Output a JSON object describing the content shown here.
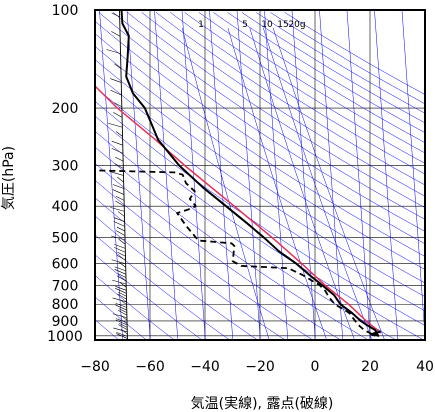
{
  "chart_data": {
    "type": "skew-t",
    "xlabel": "気温(実線), 露点(破線)",
    "ylabel": "気圧(hPa)",
    "xlim": [
      -80,
      40
    ],
    "ylim": [
      1030,
      100
    ],
    "yscale": "log",
    "x_ticks": [
      "−80",
      "−60",
      "−40",
      "−20",
      "0",
      "20",
      "40"
    ],
    "x_tick_values": [
      -80,
      -60,
      -40,
      -20,
      0,
      20,
      40
    ],
    "y_ticks": [
      "100",
      "200",
      "300",
      "400",
      "500",
      "600",
      "700",
      "800",
      "900",
      "1000"
    ],
    "y_tick_values": [
      100,
      200,
      300,
      400,
      500,
      600,
      700,
      800,
      900,
      1000
    ],
    "mixing_ratio_labels": [
      "1",
      "5",
      "10",
      "15",
      "20g"
    ],
    "temperature": {
      "color": "#000000",
      "style": "solid",
      "points": [
        [
          970,
          24
        ],
        [
          985,
          21
        ],
        [
          1000,
          23
        ],
        [
          960,
          22
        ],
        [
          925,
          19
        ],
        [
          900,
          17
        ],
        [
          850,
          14
        ],
        [
          800,
          10
        ],
        [
          750,
          8
        ],
        [
          700,
          4
        ],
        [
          650,
          -0.5
        ],
        [
          600,
          -5
        ],
        [
          550,
          -11
        ],
        [
          500,
          -16
        ],
        [
          450,
          -22
        ],
        [
          400,
          -29
        ],
        [
          350,
          -37
        ],
        [
          300,
          -45
        ],
        [
          250,
          -52
        ],
        [
          200,
          -56
        ],
        [
          180,
          -60
        ],
        [
          160,
          -62
        ],
        [
          140,
          -61
        ],
        [
          120,
          -60
        ],
        [
          110,
          -62
        ],
        [
          100,
          -62
        ]
      ]
    },
    "dewpoint": {
      "color": "#000000",
      "style": "dashed",
      "points": [
        [
          985,
          20
        ],
        [
          1000,
          22
        ],
        [
          990,
          21
        ],
        [
          960,
          18
        ],
        [
          925,
          16
        ],
        [
          900,
          15
        ],
        [
          850,
          13
        ],
        [
          800,
          8
        ],
        [
          760,
          6
        ],
        [
          730,
          5
        ],
        [
          700,
          3
        ],
        [
          650,
          -3
        ],
        [
          620,
          -8
        ],
        [
          610,
          -25
        ],
        [
          590,
          -28
        ],
        [
          530,
          -27
        ],
        [
          520,
          -28
        ],
        [
          510,
          -40
        ],
        [
          460,
          -44
        ],
        [
          420,
          -47
        ],
        [
          410,
          -43
        ],
        [
          400,
          -40
        ],
        [
          380,
          -42
        ],
        [
          360,
          -40
        ],
        [
          340,
          -43
        ],
        [
          320,
          -44
        ],
        [
          315,
          -47
        ],
        [
          310,
          -80
        ]
      ]
    },
    "parcel_curve": {
      "color": "#e8305a",
      "points": [
        [
          980,
          24
        ],
        [
          900,
          19
        ],
        [
          800,
          13
        ],
        [
          700,
          5
        ],
        [
          600,
          -3
        ],
        [
          500,
          -13
        ],
        [
          400,
          -26
        ],
        [
          300,
          -43
        ],
        [
          250,
          -53
        ],
        [
          200,
          -66
        ],
        [
          150,
          -80
        ]
      ]
    },
    "wind_profile": {
      "x": -70
    },
    "colors": {
      "isopleths": "#0000ff",
      "grid": "#000000"
    }
  }
}
